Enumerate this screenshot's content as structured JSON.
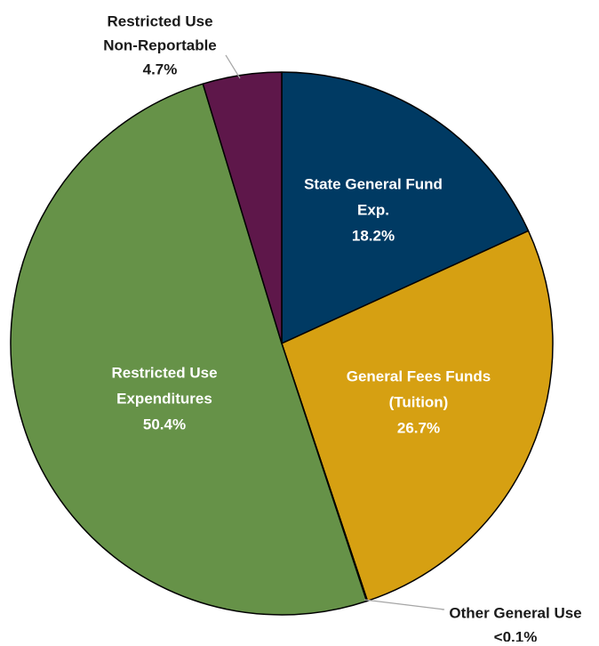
{
  "chart_data": {
    "type": "pie",
    "title": "",
    "slices": [
      {
        "label_lines": [
          "State General Fund",
          "Exp."
        ],
        "value_label": "18.2%",
        "value": 18.2,
        "color": "#003a63",
        "label_color": "#ffffff"
      },
      {
        "label_lines": [
          "General Fees Funds",
          "(Tuition)"
        ],
        "value_label": "26.7%",
        "value": 26.7,
        "color": "#d6a012",
        "label_color": "#ffffff"
      },
      {
        "label_lines": [
          "Other General Use"
        ],
        "value_label": "<0.1%",
        "value": 0.05,
        "color": "#b09400",
        "label_color": "#1a1a1a"
      },
      {
        "label_lines": [
          "Restricted Use",
          "Expenditures"
        ],
        "value_label": "50.4%",
        "value": 50.4,
        "color": "#669248",
        "label_color": "#ffffff"
      },
      {
        "label_lines": [
          "Restricted Use",
          "Non-Reportable"
        ],
        "value_label": "4.7%",
        "value": 4.7,
        "color": "#5e174a",
        "label_color": "#1a1a1a"
      }
    ],
    "start_angle_deg": 0,
    "direction": "clockwise",
    "legend": "none"
  }
}
